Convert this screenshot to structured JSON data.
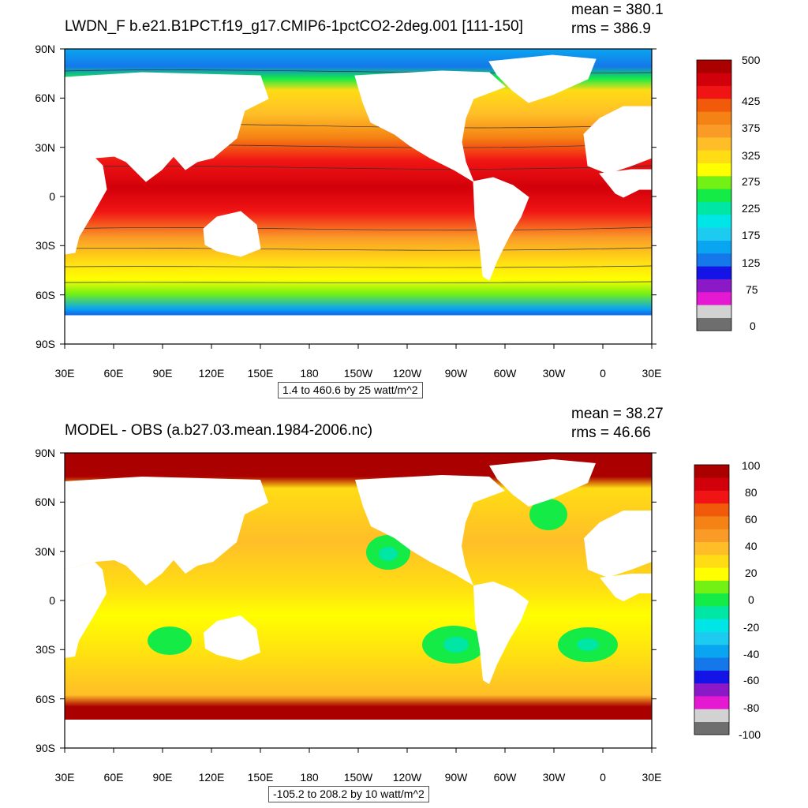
{
  "panels": [
    {
      "title": "LWDN_F b.e21.B1PCT.f19_g17.CMIP6-1pctCO2-2deg.001 [111-150]",
      "mean": "mean = 380.1",
      "rms": "rms = 386.9",
      "caption": "1.4 to 460.6 by 25 watt/m^2",
      "colorbar": {
        "colors": [
          "#6e6e6e",
          "#d2d2d2",
          "#e619d2",
          "#8c19c8",
          "#1414e6",
          "#1478eb",
          "#0aa5f0",
          "#1ecbf0",
          "#00e6e6",
          "#00e6a5",
          "#14eb46",
          "#73f014",
          "#ffff00",
          "#ffdc14",
          "#ffbe28",
          "#fa9b28",
          "#f58214",
          "#f05a0a",
          "#f01414",
          "#d2000a",
          "#aa0000"
        ],
        "labels": [
          "0",
          "75",
          "125",
          "175",
          "225",
          "275",
          "325",
          "375",
          "425",
          "500"
        ]
      }
    },
    {
      "title": "MODEL - OBS (a.b27.03.mean.1984-2006.nc)",
      "mean": "mean = 38.27",
      "rms": "rms = 46.66",
      "caption": "-105.2 to 208.2 by 10 watt/m^2",
      "colorbar": {
        "colors": [
          "#6e6e6e",
          "#d2d2d2",
          "#e619d2",
          "#8c19c8",
          "#1414e6",
          "#1478eb",
          "#0aa5f0",
          "#1ecbf0",
          "#00e6e6",
          "#00e6a5",
          "#14eb46",
          "#73f014",
          "#ffff00",
          "#ffdc14",
          "#ffbe28",
          "#fa9b28",
          "#f58214",
          "#f05a0a",
          "#f01414",
          "#d2000a",
          "#aa0000"
        ],
        "labels": [
          "-100",
          "-80",
          "-60",
          "-40",
          "-20",
          "0",
          "20",
          "40",
          "60",
          "80",
          "100"
        ]
      }
    }
  ],
  "axes": {
    "lat_labels": [
      "90N",
      "60N",
      "30N",
      "0",
      "30S",
      "60S",
      "90S"
    ],
    "lon_labels": [
      "30E",
      "60E",
      "90E",
      "120E",
      "150E",
      "180",
      "150W",
      "120W",
      "90W",
      "60W",
      "30W",
      "0",
      "30E"
    ]
  }
}
